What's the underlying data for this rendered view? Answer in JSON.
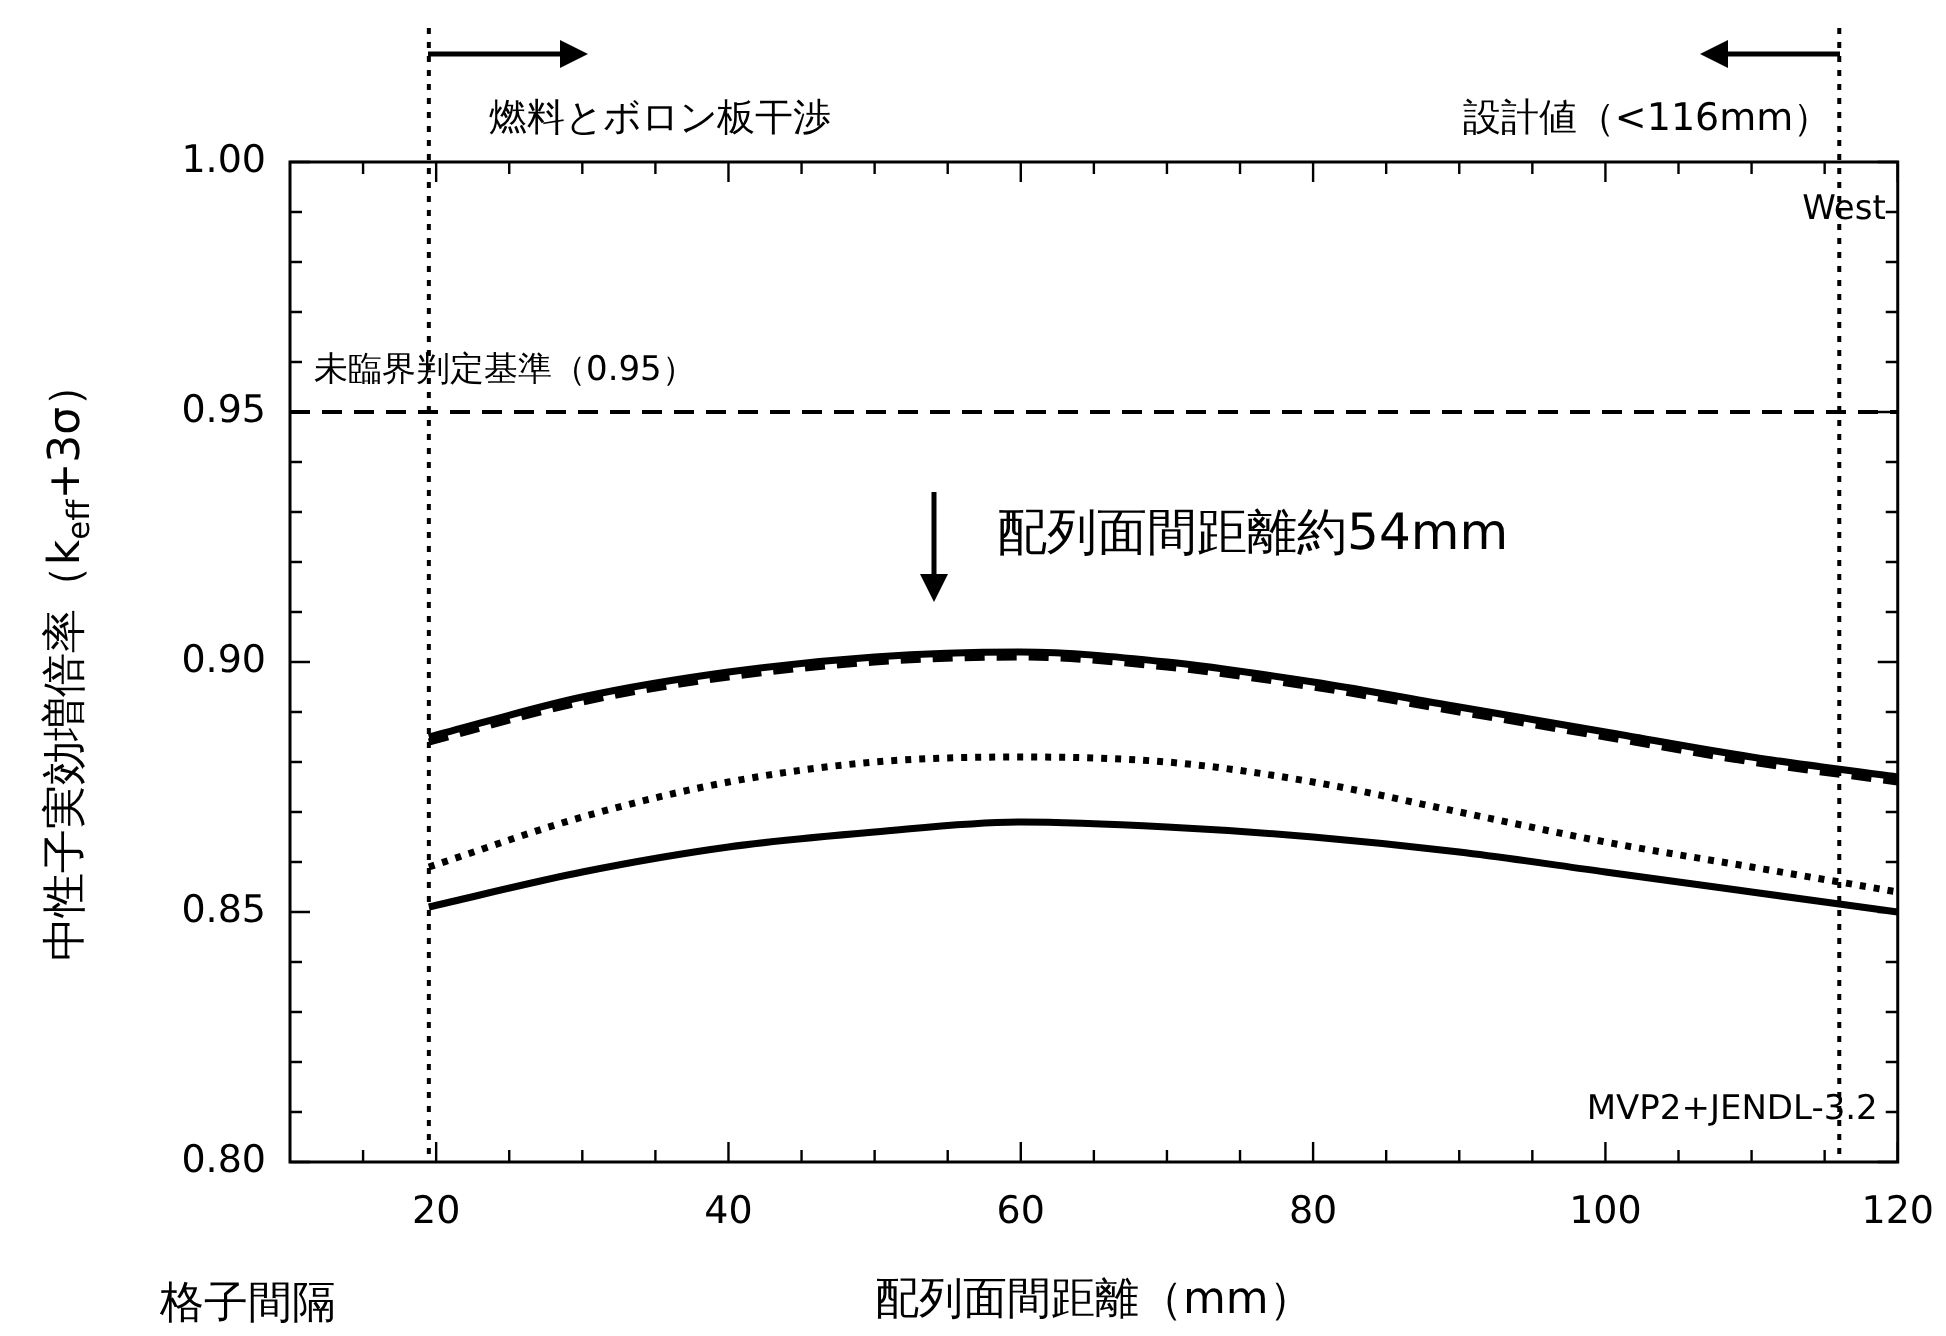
{
  "chart_data": {
    "type": "line",
    "xlabel": "配列面間距離（mm）",
    "ylabel": "中性子実効増倍率（k$_{eff}$+3σ）",
    "x": [
      19.5,
      30,
      40,
      50,
      60,
      70,
      80,
      90,
      100,
      110,
      120
    ],
    "series": [
      {
        "color": "#000000",
        "line_style": "solid",
        "values": [
          0.885,
          0.893,
          0.898,
          0.901,
          0.902,
          0.9,
          0.896,
          0.891,
          0.886,
          0.881,
          0.877
        ]
      },
      {
        "color": "#000000",
        "line_style": "dashed",
        "values": [
          0.884,
          0.892,
          0.897,
          0.9,
          0.901,
          0.899,
          0.895,
          0.89,
          0.885,
          0.88,
          0.876
        ]
      },
      {
        "color": "#000000",
        "line_style": "dotted",
        "values": [
          0.859,
          0.869,
          0.876,
          0.88,
          0.881,
          0.88,
          0.876,
          0.87,
          0.864,
          0.859,
          0.854
        ]
      },
      {
        "color": "#000000",
        "line_style": "solid",
        "values": [
          0.851,
          0.858,
          0.863,
          0.866,
          0.868,
          0.867,
          0.865,
          0.862,
          0.858,
          0.854,
          0.85
        ]
      }
    ],
    "xlim": [
      10,
      120
    ],
    "xticks": [
      {
        "value": 15,
        "label": null
      },
      20,
      {
        "value": 25,
        "label": null
      },
      {
        "value": 30,
        "label": null
      },
      {
        "value": 35,
        "label": null
      },
      40,
      {
        "value": 45,
        "label": null
      },
      {
        "value": 50,
        "label": null
      },
      {
        "value": 55,
        "label": null
      },
      60,
      {
        "value": 65,
        "label": null
      },
      {
        "value": 70,
        "label": null
      },
      {
        "value": 75,
        "label": null
      },
      80,
      {
        "value": 85,
        "label": null
      },
      {
        "value": 90,
        "label": null
      },
      {
        "value": 95,
        "label": null
      },
      100,
      {
        "value": 105,
        "label": null
      },
      {
        "value": 110,
        "label": null
      },
      {
        "value": 115,
        "label": null
      },
      120
    ],
    "ylim": [
      0.8,
      1.0
    ],
    "yticks": [
      {
        "value": 0.8,
        "label": "0.80"
      },
      {
        "value": 0.81,
        "label": null
      },
      {
        "value": 0.82,
        "label": null
      },
      {
        "value": 0.83,
        "label": null
      },
      {
        "value": 0.84,
        "label": null
      },
      {
        "value": 0.85,
        "label": "0.85"
      },
      {
        "value": 0.86,
        "label": null
      },
      {
        "value": 0.87,
        "label": null
      },
      {
        "value": 0.88,
        "label": null
      },
      {
        "value": 0.89,
        "label": null
      },
      {
        "value": 0.9,
        "label": "0.90"
      },
      {
        "value": 0.91,
        "label": null
      },
      {
        "value": 0.92,
        "label": null
      },
      {
        "value": 0.93,
        "label": null
      },
      {
        "value": 0.94,
        "label": null
      },
      {
        "value": 0.95,
        "label": "0.95"
      },
      {
        "value": 0.96,
        "label": null
      },
      {
        "value": 0.97,
        "label": null
      },
      {
        "value": 0.98,
        "label": null
      },
      {
        "value": 0.99,
        "label": null
      },
      {
        "value": 1.0,
        "label": "1.00"
      }
    ],
    "ref_lines": [
      {
        "axis": "y",
        "value": 0.95,
        "label": "未臨界判定基準（0.95）",
        "color": "#000000",
        "line_style": "dashed"
      },
      {
        "axis": "x",
        "value": 19.5,
        "color": "#000000",
        "line_style": "dotted"
      },
      {
        "axis": "x",
        "value": 116,
        "color": "#000000",
        "line_style": "dotted"
      }
    ],
    "annotations": [
      "燃料とボロン板干渉",
      "設計値（<116mm）",
      "West",
      {
        "text": "配列面間距離約54mm",
        "x": 54,
        "y": 0.902
      },
      "MVP2+JENDL-3.2",
      "格子間隔"
    ],
    "grid": false,
    "legend": false,
    "marker": "none"
  }
}
